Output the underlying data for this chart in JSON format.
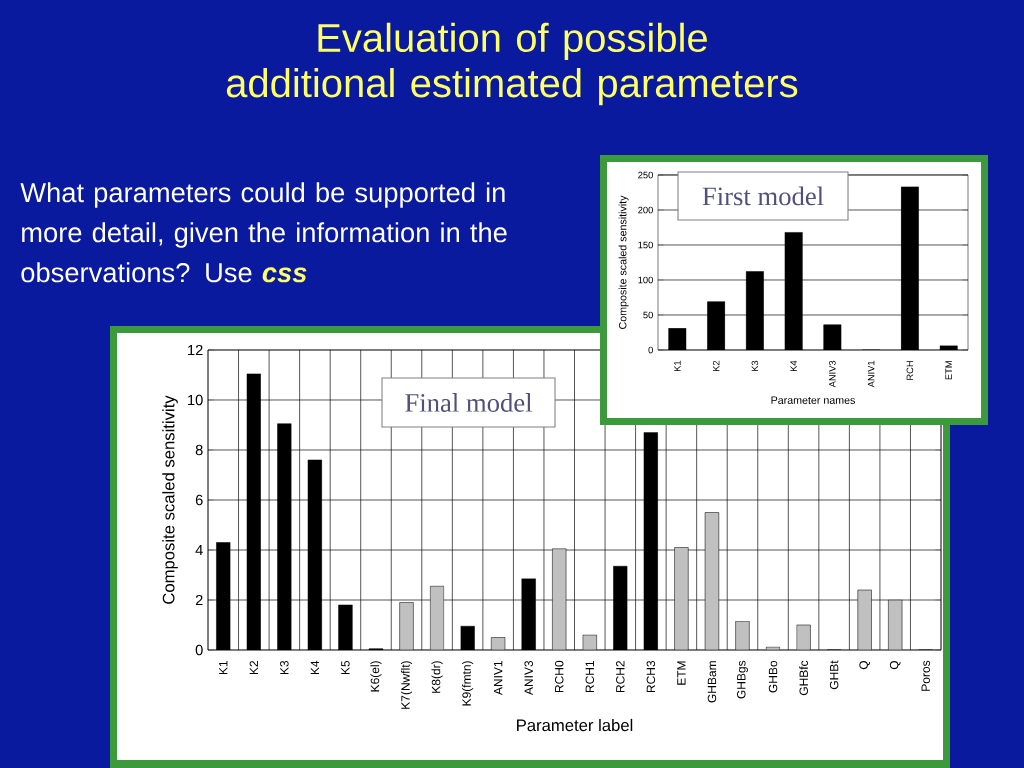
{
  "chart_data": [
    {
      "type": "other",
      "title": "Evaluation of possible additional estimated parameters",
      "annotations": [
        "What parameters could be supported in more detail, given the information in the observations? Use",
        "css"
      ]
    },
    {
      "type": "bar",
      "xlabel": "Parameter names",
      "ylabel": "Composite scaled sensitivity",
      "annotations": [
        "First model"
      ],
      "categories": [
        "K1",
        "K2",
        "K3",
        "K4",
        "ANIV3",
        "ANIV1",
        "RCH",
        "ETM"
      ],
      "values": [
        31,
        69,
        112,
        168,
        36,
        0,
        233,
        6
      ],
      "color": "#000000",
      "ylim": [
        0,
        250
      ],
      "yticks": [
        0,
        50,
        100,
        150,
        200,
        250
      ],
      "grid": "y"
    },
    {
      "type": "bar",
      "xlabel": "Parameter label",
      "ylabel": "Composite scaled sensitivity",
      "annotations": [
        "Final model"
      ],
      "categories": [
        "K1",
        "K2",
        "K3",
        "K4",
        "K5",
        "K6(el)",
        "K7(Nwflt)",
        "K8(dr)",
        "K9(fmtn)",
        "ANIV1",
        "ANIV3",
        "RCH0",
        "RCH1",
        "RCH2",
        "RCH3",
        "ETM",
        "GHBam",
        "GHBgs",
        "GHBo",
        "GHBfc",
        "GHBt",
        "Q",
        "Q",
        "Poros"
      ],
      "values": [
        4.3,
        11.05,
        9.05,
        7.6,
        1.8,
        0.05,
        1.9,
        2.55,
        0.95,
        0.5,
        2.85,
        4.05,
        0.6,
        3.35,
        8.7,
        4.1,
        5.5,
        1.15,
        0.12,
        1.0,
        0,
        2.4,
        2.0,
        0
      ],
      "colors": [
        "#000000",
        "#000000",
        "#000000",
        "#000000",
        "#000000",
        "#000000",
        "#c0c0c0",
        "#c0c0c0",
        "#000000",
        "#c0c0c0",
        "#000000",
        "#c0c0c0",
        "#c0c0c0",
        "#000000",
        "#000000",
        "#c0c0c0",
        "#c0c0c0",
        "#c0c0c0",
        "#c0c0c0",
        "#c0c0c0",
        "#c0c0c0",
        "#c0c0c0",
        "#c0c0c0",
        "#c0c0c0"
      ],
      "ylim": [
        0,
        12
      ],
      "yticks": [
        0,
        2,
        4,
        6,
        8,
        10,
        12
      ],
      "grid": true
    }
  ]
}
